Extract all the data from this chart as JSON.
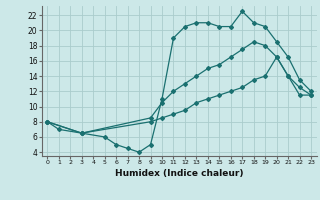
{
  "xlabel": "Humidex (Indice chaleur)",
  "bg_color": "#cce8e8",
  "grid_color": "#aacccc",
  "line_color": "#1a7070",
  "xlim": [
    -0.5,
    23.5
  ],
  "ylim": [
    3.5,
    23.2
  ],
  "xticks": [
    0,
    1,
    2,
    3,
    4,
    5,
    6,
    7,
    8,
    9,
    10,
    11,
    12,
    13,
    14,
    15,
    16,
    17,
    18,
    19,
    20,
    21,
    22,
    23
  ],
  "yticks": [
    4,
    6,
    8,
    10,
    12,
    14,
    16,
    18,
    20,
    22
  ],
  "line1_x": [
    0,
    1,
    3,
    5,
    6,
    7,
    8,
    9,
    10,
    11,
    12,
    13,
    14,
    15,
    16,
    17,
    18,
    19,
    20,
    21,
    22,
    23
  ],
  "line1_y": [
    8.0,
    7.0,
    6.5,
    6.0,
    5.0,
    4.5,
    4.0,
    5.0,
    11.0,
    19.0,
    20.5,
    21.0,
    21.0,
    20.5,
    20.5,
    22.5,
    21.0,
    20.5,
    18.5,
    16.5,
    13.5,
    12.0
  ],
  "line2_x": [
    0,
    3,
    9,
    10,
    11,
    12,
    13,
    14,
    15,
    16,
    17,
    18,
    19,
    20,
    21,
    22,
    23
  ],
  "line2_y": [
    8.0,
    6.5,
    8.5,
    10.5,
    12.0,
    13.0,
    14.0,
    15.0,
    15.5,
    16.5,
    17.5,
    18.5,
    18.0,
    16.5,
    14.0,
    11.5,
    11.5
  ],
  "line3_x": [
    0,
    3,
    9,
    10,
    11,
    12,
    13,
    14,
    15,
    16,
    17,
    18,
    19,
    20,
    21,
    22,
    23
  ],
  "line3_y": [
    8.0,
    6.5,
    8.0,
    8.5,
    9.0,
    9.5,
    10.5,
    11.0,
    11.5,
    12.0,
    12.5,
    13.5,
    14.0,
    16.5,
    14.0,
    12.5,
    11.5
  ]
}
